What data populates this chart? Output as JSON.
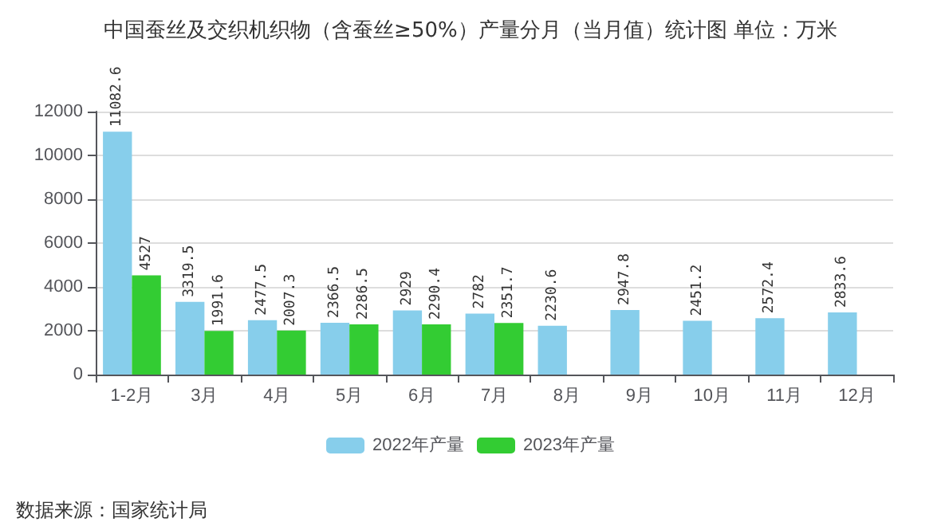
{
  "chart_data": {
    "type": "bar",
    "title": "中国蚕丝及交织机织物（含蚕丝≥50%）产量分月（当月值）统计图 单位：万米",
    "categories": [
      "1-2月",
      "3月",
      "4月",
      "5月",
      "6月",
      "7月",
      "8月",
      "9月",
      "10月",
      "11月",
      "12月"
    ],
    "series": [
      {
        "name": "2022年产量",
        "color": "#87ceeb",
        "values": [
          11082.6,
          3319.5,
          2477.5,
          2366.5,
          2929,
          2782,
          2230.6,
          2947.8,
          2451.2,
          2572.4,
          2833.6
        ]
      },
      {
        "name": "2023年产量",
        "color": "#33cc33",
        "values": [
          4527,
          1991.6,
          2007.3,
          2286.5,
          2290.4,
          2351.7,
          null,
          null,
          null,
          null,
          null
        ]
      }
    ],
    "ylim": [
      0,
      12000
    ],
    "yticks": [
      0,
      2000,
      4000,
      6000,
      8000,
      10000,
      12000
    ],
    "grid": "y",
    "legend": "bottom",
    "data_labels": true,
    "annotations": [
      "数据来源：国家统计局"
    ]
  }
}
